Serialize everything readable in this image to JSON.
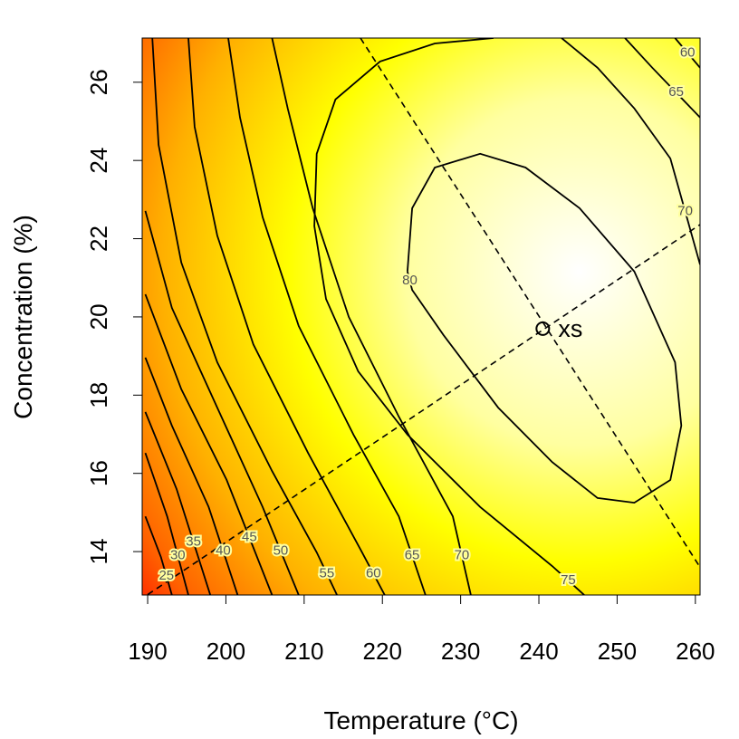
{
  "chart_data": {
    "type": "contour",
    "xlabel": "Temperature (°C)",
    "ylabel": "Concentration (%)",
    "xlim": [
      189.3,
      260.6
    ],
    "ylim": [
      12.89,
      27.13
    ],
    "xticks": [
      190,
      200,
      210,
      220,
      230,
      240,
      250,
      260
    ],
    "yticks": [
      14,
      16,
      18,
      20,
      22,
      24,
      26
    ],
    "line_color": "#000000",
    "contours": [
      {
        "level": 80,
        "x": [
          223.2,
          223.8,
          226.7,
          232.5,
          238.3,
          245.2,
          252.2,
          257.4,
          258.2,
          256.8,
          252.2,
          247.5,
          241.7,
          234.8,
          227.8,
          223.8,
          223.2
        ],
        "y": [
          21.16,
          22.78,
          23.82,
          24.17,
          23.82,
          22.78,
          21.16,
          18.84,
          17.22,
          15.83,
          15.25,
          15.37,
          16.29,
          17.68,
          19.54,
          20.69,
          21.16
        ]
      },
      {
        "level": 75,
        "x": [
          234.2,
          226.7,
          219.7,
          214.0,
          211.6,
          211.3,
          212.8,
          216.9,
          223.2,
          232.5,
          241.7,
          245.8
        ],
        "y": [
          27.13,
          26.99,
          26.53,
          25.56,
          24.17,
          22.32,
          20.46,
          18.61,
          16.99,
          15.14,
          13.63,
          12.89
        ]
      },
      {
        "level": 70,
        "x": [
          242.9,
          247.5,
          252.2,
          256.8,
          260.6
        ],
        "y": [
          27.13,
          26.37,
          25.33,
          24.05,
          21.34
        ]
      },
      {
        "level": 70,
        "x": [
          205.9,
          207.9,
          211.1,
          215.7,
          222.1,
          229.0,
          231.3
        ],
        "y": [
          27.13,
          25.33,
          22.78,
          20.0,
          17.45,
          14.9,
          12.89
        ]
      },
      {
        "level": 65,
        "x": [
          251.0,
          254.5,
          260.6
        ],
        "y": [
          27.13,
          26.37,
          25.1
        ]
      },
      {
        "level": 65,
        "x": [
          200.3,
          201.8,
          204.7,
          209.3,
          216.3,
          222.1,
          225.5
        ],
        "y": [
          27.13,
          25.1,
          22.55,
          19.77,
          16.99,
          14.9,
          12.89
        ]
      },
      {
        "level": 60,
        "x": [
          257.4,
          260.6
        ],
        "y": [
          27.13,
          26.37
        ]
      },
      {
        "level": 60,
        "x": [
          195.2,
          196.0,
          198.9,
          203.5,
          210.5,
          217.4,
          220.3
        ],
        "y": [
          27.13,
          24.86,
          22.08,
          19.3,
          16.52,
          13.98,
          12.89
        ]
      },
      {
        "level": 55,
        "x": [
          190.6,
          191.4,
          194.3,
          198.9,
          205.9,
          211.6,
          214.2
        ],
        "y": [
          27.13,
          24.4,
          21.39,
          18.84,
          16.06,
          13.98,
          12.89
        ]
      },
      {
        "level": 50,
        "x": [
          189.7,
          193.1,
          198.9,
          204.7,
          209.3
        ],
        "y": [
          22.71,
          20.23,
          17.68,
          15.14,
          12.89
        ]
      },
      {
        "level": 45,
        "x": [
          189.7,
          194.3,
          200.1,
          205.9
        ],
        "y": [
          20.58,
          18.15,
          15.83,
          12.89
        ]
      },
      {
        "level": 40,
        "x": [
          189.7,
          193.1,
          197.8,
          201.5
        ],
        "y": [
          18.96,
          17.22,
          15.14,
          12.89
        ]
      },
      {
        "level": 35,
        "x": [
          189.7,
          193.7,
          198.0
        ],
        "y": [
          17.57,
          15.6,
          12.89
        ]
      },
      {
        "level": 30,
        "x": [
          189.7,
          192.5,
          195.2
        ],
        "y": [
          16.52,
          14.9,
          12.89
        ]
      },
      {
        "level": 25,
        "x": [
          189.7,
          191.7,
          193.1
        ],
        "y": [
          14.9,
          13.86,
          12.89
        ]
      }
    ],
    "dashed_lines": [
      {
        "x": [
          217.2,
          260.6
        ],
        "y": [
          27.13,
          13.6
        ]
      },
      {
        "x": [
          190.0,
          260.6
        ],
        "y": [
          12.9,
          22.36
        ]
      }
    ],
    "stationary_point": {
      "label": "xs",
      "x": 240.5,
      "y": 19.7
    }
  }
}
